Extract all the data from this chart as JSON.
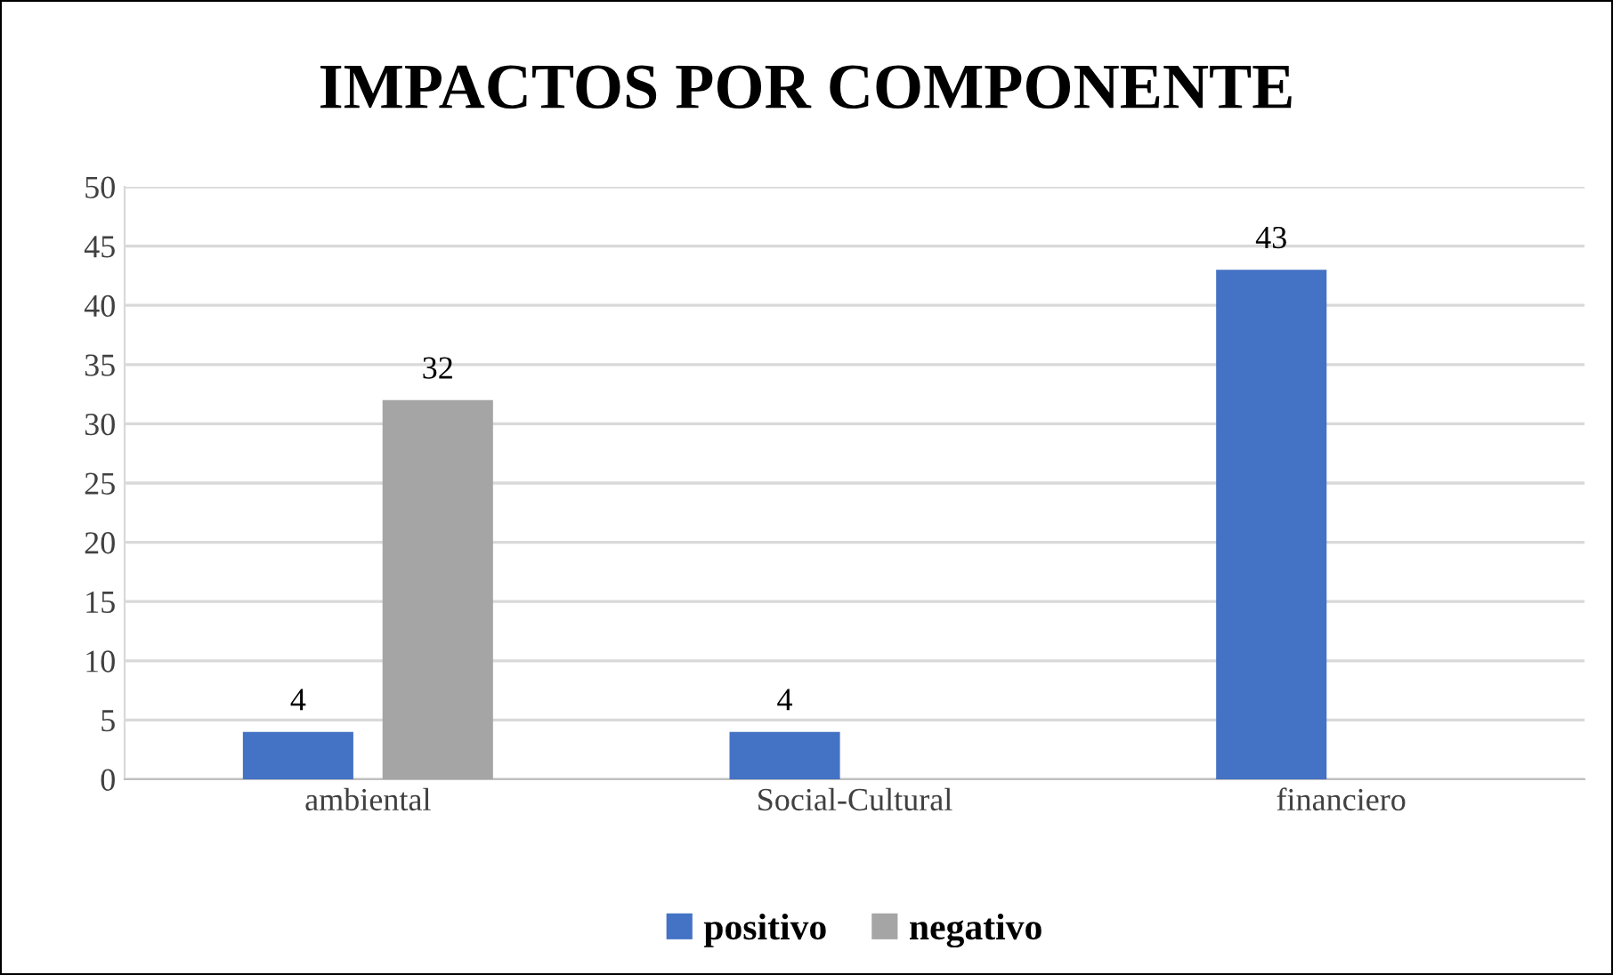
{
  "chart_data": {
    "type": "bar",
    "title": "IMPACTOS POR COMPONENTE",
    "categories": [
      "ambiental",
      "Social-Cultural",
      "financiero"
    ],
    "series": [
      {
        "name": "positivo",
        "color": "#4472c4",
        "values": [
          4,
          4,
          43
        ]
      },
      {
        "name": "negativo",
        "color": "#a5a5a5",
        "values": [
          32,
          null,
          null
        ]
      }
    ],
    "ylim": [
      0,
      50
    ],
    "yticks": [
      0,
      5,
      10,
      15,
      20,
      25,
      30,
      35,
      40,
      45,
      50
    ],
    "grid": "y",
    "legend": "bottom",
    "data_labels": true
  }
}
